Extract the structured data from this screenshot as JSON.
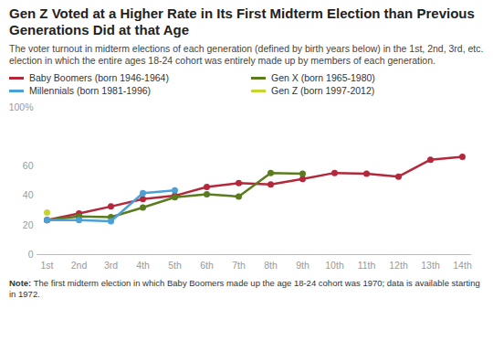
{
  "chart_data": {
    "type": "line",
    "title": "Gen Z Voted at a Higher Rate in Its First Midterm Election than Previous Generations Did at that Age",
    "subtitle": "The voter turnout in midterm elections of each generation (defined by birth years below) in the 1st, 2nd, 3rd, etc. election in which the entire ages 18-24 cohort was entirely made up by members of each generation.",
    "note_label": "Note:",
    "note": "The first midterm election in which Baby Boomers made up the age 18-24 cohort was 1970; data is available starting in 1972.",
    "categories": [
      "1st",
      "2nd",
      "3rd",
      "4th",
      "5th",
      "6th",
      "7th",
      "8th",
      "9th",
      "10th",
      "11th",
      "12th",
      "13th",
      "14th"
    ],
    "series": [
      {
        "name": "Baby Boomers (born 1946-1964)",
        "color": "#b3283a",
        "marker": "circle",
        "values": [
          23.5,
          28,
          32.7,
          37.7,
          40,
          46,
          48.6,
          47.7,
          51.4,
          55.5,
          55,
          53,
          64.5,
          66.4
        ]
      },
      {
        "name": "Gen X (born 1965-1980)",
        "color": "#5b7c1e",
        "marker": "circle",
        "values": [
          23.5,
          26,
          25.5,
          32,
          39,
          41,
          39.5,
          55.5,
          55,
          null,
          null,
          null,
          null,
          null
        ]
      },
      {
        "name": "Millennials (born 1981-1996)",
        "color": "#4aa0d8",
        "marker": "circle",
        "values": [
          23.5,
          23.5,
          22.7,
          41.8,
          43.6,
          null,
          null,
          null,
          null,
          null,
          null,
          null,
          null,
          null
        ]
      },
      {
        "name": "Gen Z (born 1997-2012)",
        "color": "#c6d532",
        "marker": "circle",
        "values": [
          28.6,
          null,
          null,
          null,
          null,
          null,
          null,
          null,
          null,
          null,
          null,
          null,
          null,
          null
        ]
      }
    ],
    "ylim": [
      0,
      100
    ],
    "yticks": [
      0,
      20,
      40,
      60,
      {
        "value": 100,
        "label": "100%"
      }
    ],
    "grid": false,
    "legend": "top"
  }
}
